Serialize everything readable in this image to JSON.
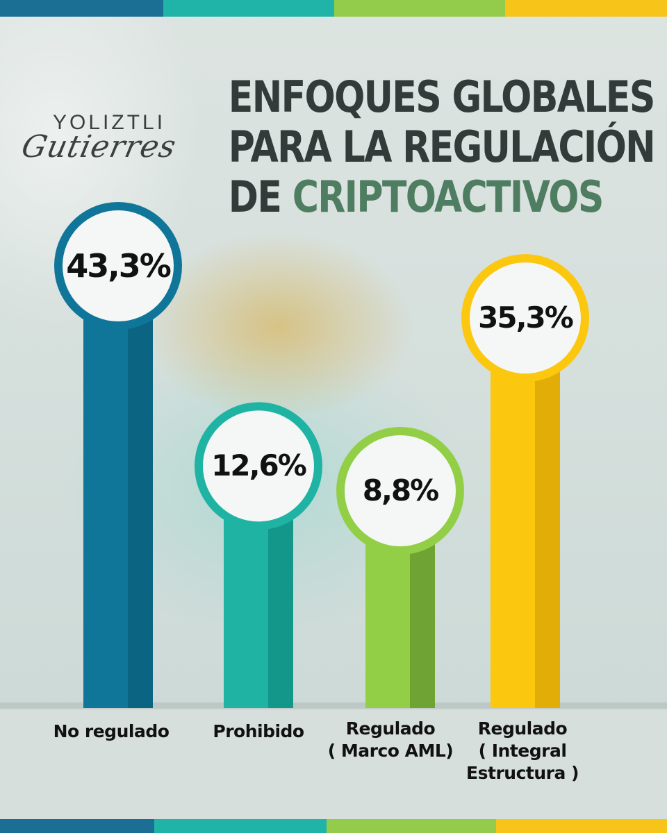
{
  "header": {
    "title_line1": "ENFOQUES GLOBALES",
    "title_line2": "PARA LA REGULACIÓN",
    "title_line3_prefix": "DE ",
    "title_line3_accent": "CRIPTOACTIVOS"
  },
  "logo": {
    "top_text": "YOLIZTLI",
    "script_text": "Gutierres"
  },
  "colors": {
    "band": [
      "#1b6e94",
      "#20b4a8",
      "#92cc4a",
      "#f7c41a"
    ],
    "title": "#333b3a",
    "accent": "#4e7d61"
  },
  "chart_data": {
    "type": "bar",
    "categories": [
      "No regulado",
      "Prohibido",
      "Regulado ( Marco AML)",
      "Regulado ( Integral Estructura )"
    ],
    "category_lines": [
      [
        "No regulado"
      ],
      [
        "Prohibido"
      ],
      [
        "Regulado",
        "( Marco AML)"
      ],
      [
        "Regulado",
        "( Integral",
        "Estructura )"
      ]
    ],
    "values": [
      43.3,
      12.6,
      8.8,
      35.3
    ],
    "value_labels": [
      "43,3%",
      "12,6%",
      "8,8%",
      "35,3%"
    ],
    "bar_colors": [
      "#0f7599",
      "#1fb3a4",
      "#92cf47",
      "#fbc70f"
    ],
    "bar_shade_colors": [
      "#0b6582",
      "#14978b",
      "#6fa435",
      "#e3ad07"
    ],
    "ring_colors": [
      "#0f7599",
      "#1fb3a4",
      "#92cf47",
      "#fbc70f"
    ],
    "title": "",
    "xlabel": "",
    "ylabel": ""
  }
}
